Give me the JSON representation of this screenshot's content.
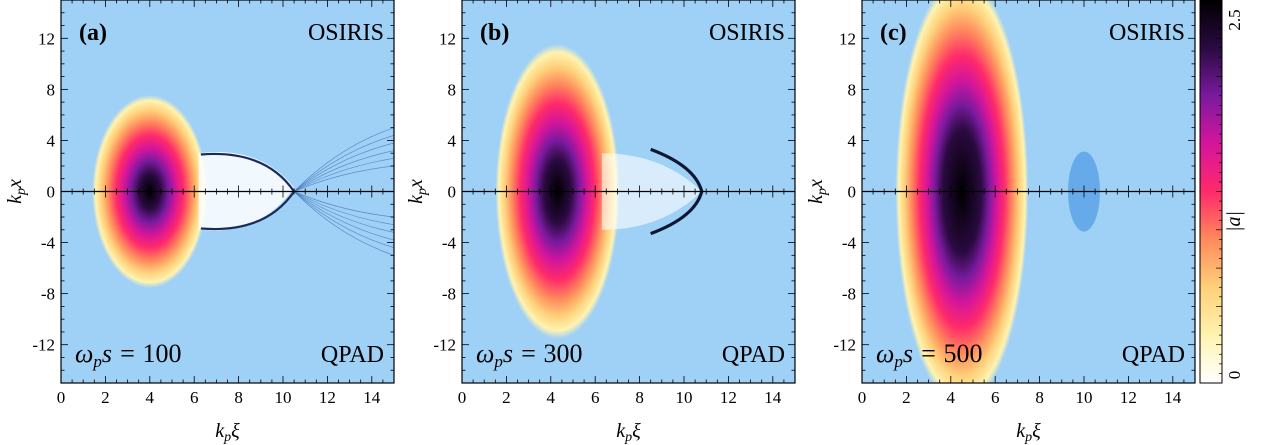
{
  "chart_data": [
    {
      "type": "heatmap",
      "panel_label": "(a)",
      "top_label": "OSIRIS",
      "bottom_label": "QPAD",
      "time_label_prefix": "ω",
      "time_label_sub": "p",
      "time_label_var": "s = ",
      "time_value": "100",
      "xlabel_main": "k",
      "xlabel_sub": "p",
      "xlabel_var": "ξ",
      "ylabel_main": "k",
      "ylabel_sub": "p",
      "ylabel_var": "x",
      "xlim": [
        0,
        15
      ],
      "ylim": [
        -15,
        15
      ],
      "xticks": [
        "0",
        "2",
        "4",
        "6",
        "8",
        "10",
        "12",
        "14"
      ],
      "yticks": [
        "-12",
        "-8",
        "-4",
        "0",
        "4",
        "8",
        "12"
      ],
      "driver": {
        "center": 4.0,
        "width_x": 1.3,
        "width_y": 3.6,
        "peak": 2.9
      }
    },
    {
      "type": "heatmap",
      "panel_label": "(b)",
      "top_label": "OSIRIS",
      "bottom_label": "QPAD",
      "time_label_prefix": "ω",
      "time_label_sub": "p",
      "time_label_var": "s = ",
      "time_value": "300",
      "xlabel_main": "k",
      "xlabel_sub": "p",
      "xlabel_var": "ξ",
      "ylabel_main": "k",
      "ylabel_sub": "p",
      "ylabel_var": "x",
      "xlim": [
        0,
        15
      ],
      "ylim": [
        -15,
        15
      ],
      "xticks": [
        "0",
        "2",
        "4",
        "6",
        "8",
        "10",
        "12",
        "14"
      ],
      "yticks": [
        "-12",
        "-8",
        "-4",
        "0",
        "4",
        "8",
        "12"
      ],
      "driver": {
        "center": 4.3,
        "width_x": 1.4,
        "width_y": 5.5,
        "peak": 2.7
      }
    },
    {
      "type": "heatmap",
      "panel_label": "(c)",
      "top_label": "OSIRIS",
      "bottom_label": "QPAD",
      "time_label_prefix": "ω",
      "time_label_sub": "p",
      "time_label_var": "s = ",
      "time_value": "500",
      "xlabel_main": "k",
      "xlabel_sub": "p",
      "xlabel_var": "ξ",
      "ylabel_main": "k",
      "ylabel_sub": "p",
      "ylabel_var": "x",
      "xlim": [
        0,
        15
      ],
      "ylim": [
        -15,
        15
      ],
      "xticks": [
        "0",
        "2",
        "4",
        "6",
        "8",
        "10",
        "12",
        "14"
      ],
      "yticks": [
        "-12",
        "-8",
        "-4",
        "0",
        "4",
        "8",
        "12"
      ],
      "driver": {
        "center": 4.5,
        "width_x": 1.5,
        "width_y": 8.0,
        "peak": 2.3
      }
    }
  ],
  "colorbar": {
    "label": "|a|",
    "ticks": [
      "0",
      "2.5"
    ],
    "range": [
      0,
      2.5
    ],
    "colors": [
      "#ffffff",
      "#fff3b0",
      "#ffd07a",
      "#ff8a5c",
      "#ff2a6a",
      "#d4159c",
      "#7a1a9e",
      "#2a0a40",
      "#000000"
    ]
  },
  "background_color": "#9fd0f6"
}
